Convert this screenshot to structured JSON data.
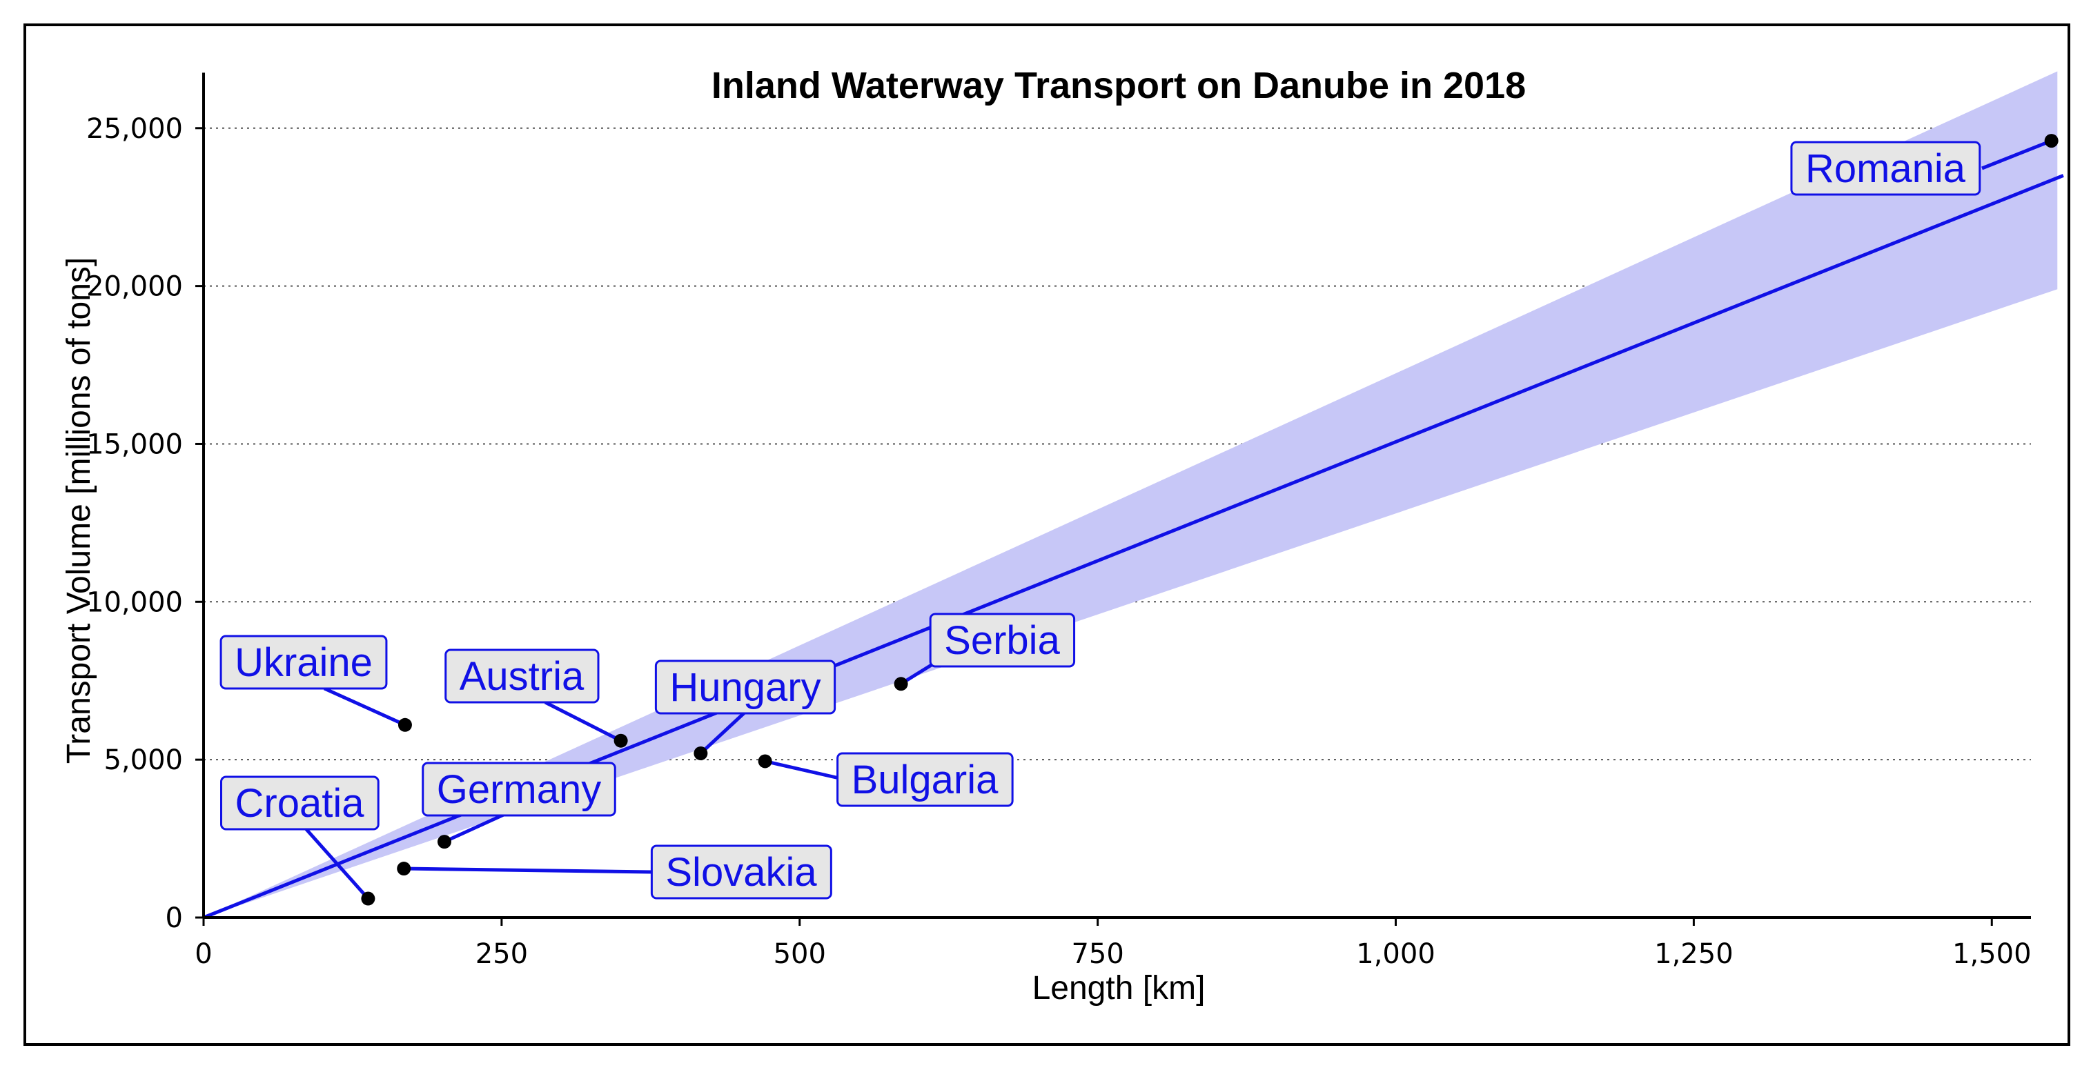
{
  "chart_data": {
    "type": "scatter",
    "title": "Inland Waterway Transport on Danube in 2018",
    "xlabel": "Length [km]",
    "ylabel": "Transport Volume [millions of tons]",
    "xlim": [
      0,
      1550
    ],
    "ylim": [
      0,
      26800
    ],
    "x_ticks": [
      0,
      250,
      500,
      750,
      1000,
      1250,
      1500
    ],
    "x_tick_labels": [
      "0",
      "250",
      "500",
      "750",
      "1,000",
      "1,250",
      "1,500"
    ],
    "y_ticks": [
      0,
      5000,
      10000,
      15000,
      20000,
      25000
    ],
    "y_tick_labels": [
      "0",
      "5,000",
      "10,000",
      "15,000",
      "20,000",
      "25,000"
    ],
    "grid": "horizontal dotted",
    "points": [
      {
        "name": "Romania",
        "x": 1550,
        "y": 24600
      },
      {
        "name": "Serbia",
        "x": 585,
        "y": 7400
      },
      {
        "name": "Bulgaria",
        "x": 471,
        "y": 4950
      },
      {
        "name": "Hungary",
        "x": 417,
        "y": 5200
      },
      {
        "name": "Austria",
        "x": 350,
        "y": 5600
      },
      {
        "name": "Germany",
        "x": 202,
        "y": 2400
      },
      {
        "name": "Ukraine",
        "x": 169,
        "y": 6100
      },
      {
        "name": "Slovakia",
        "x": 168,
        "y": 1550
      },
      {
        "name": "Croatia",
        "x": 138,
        "y": 600
      }
    ],
    "fit": {
      "line": [
        [
          0,
          0
        ],
        [
          1560,
          23500
        ]
      ],
      "band_upper": [
        [
          0,
          0
        ],
        [
          1555,
          26800
        ]
      ],
      "band_lower": [
        [
          0,
          0
        ],
        [
          1555,
          19900
        ]
      ]
    },
    "colors": {
      "line": "#1010e6",
      "band": "#c7c7f7",
      "label_fill": "#e6e6e6",
      "points": "#000000"
    }
  }
}
